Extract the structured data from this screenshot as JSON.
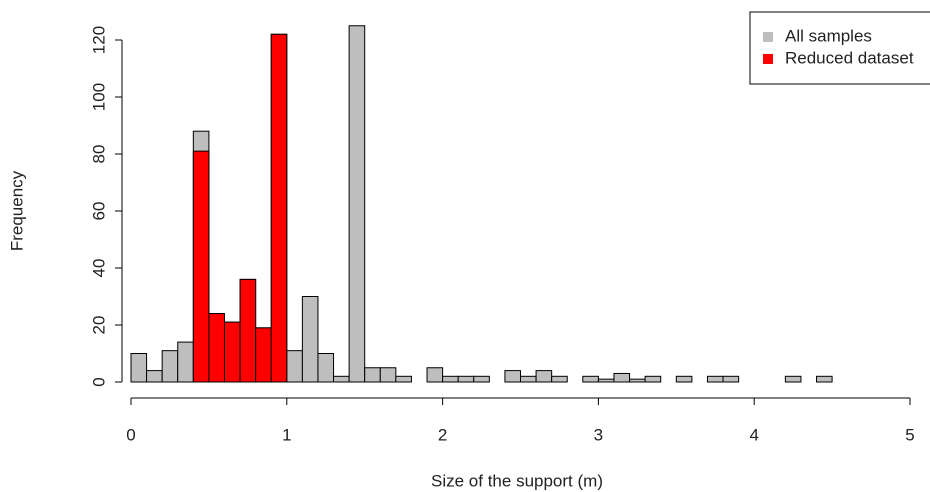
{
  "chart_data": {
    "type": "histogram",
    "x_label": "Size of the support (m)",
    "y_label": "Frequency",
    "xlim": [
      0,
      5
    ],
    "xticks": [
      0,
      1,
      2,
      3,
      4,
      5
    ],
    "ylim": [
      0,
      120
    ],
    "yticks": [
      0,
      20,
      40,
      60,
      80,
      100,
      120
    ],
    "legend": "topright",
    "series": [
      {
        "name": "All samples",
        "color": "#bebebe",
        "bins": [
          0,
          0.1,
          0.2,
          0.3,
          0.4,
          0.5,
          0.6,
          0.7,
          0.8,
          0.9,
          1,
          1.1,
          1.2,
          1.3,
          1.4,
          1.5,
          1.6,
          1.7,
          1.8,
          1.9,
          2,
          2.1,
          2.2,
          2.3,
          2.4,
          2.5,
          2.6,
          2.7,
          2.8,
          2.9,
          3,
          3.1,
          3.2,
          3.3,
          3.4,
          3.5,
          3.6,
          3.7,
          3.8,
          3.9,
          4,
          4.1,
          4.2,
          4.3,
          4.4,
          4.5,
          4.6,
          4.7,
          4.8,
          4.9,
          5
        ],
        "values": [
          10,
          4,
          11,
          14,
          88,
          24,
          21,
          36,
          19,
          122,
          11,
          30,
          10,
          2,
          125,
          5,
          5,
          2,
          0,
          5,
          2,
          2,
          2,
          0,
          4,
          2,
          4,
          2,
          0,
          2,
          1,
          3,
          1,
          2,
          0,
          2,
          0,
          2,
          2,
          0,
          0,
          0,
          2,
          0,
          2,
          0,
          0,
          0,
          0,
          0
        ]
      },
      {
        "name": "Reduced dataset",
        "color": "#ff0000",
        "bins": [
          0.4,
          0.5,
          0.6,
          0.7,
          0.8,
          0.9,
          1
        ],
        "values": [
          81,
          24,
          21,
          36,
          19,
          122
        ]
      }
    ]
  }
}
